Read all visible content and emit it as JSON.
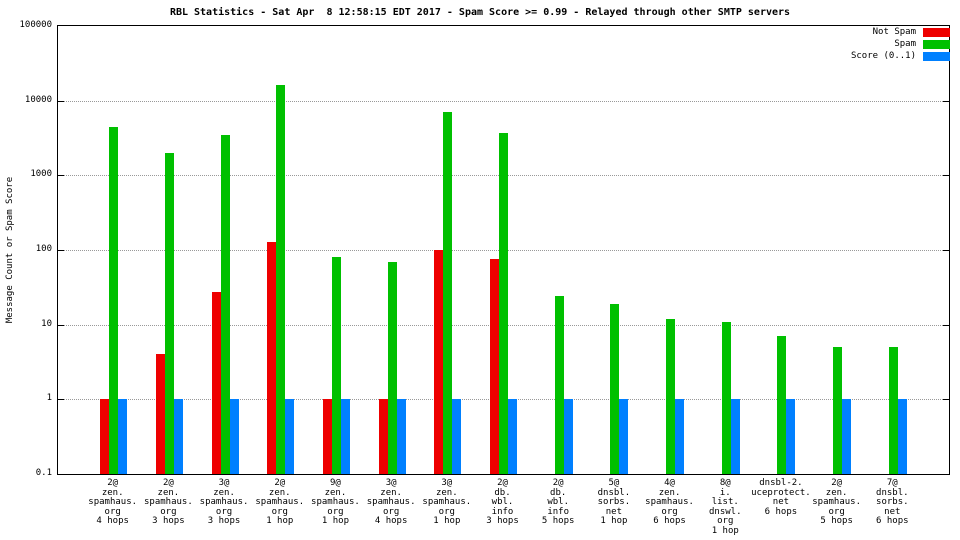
{
  "title": "RBL Statistics - Sat Apr  8 12:58:15 EDT 2017 - Spam Score >= 0.99 - Relayed through other SMTP servers",
  "ylabel": "Message Count or Spam Score",
  "legend": [
    {
      "label": "Not Spam",
      "color": "#ee0000"
    },
    {
      "label": "Spam",
      "color": "#00c000"
    },
    {
      "label": "Score (0..1)",
      "color": "#0080ff"
    }
  ],
  "chart_data": {
    "type": "bar",
    "y_scale": "log",
    "ylim": [
      0.1,
      100000
    ],
    "yticks": [
      100000,
      10000,
      1000,
      100,
      10,
      1,
      0.1
    ],
    "grid": "horizontal-dotted",
    "legend_position": "top-right",
    "categories": [
      [
        "2@",
        "zen.",
        "spamhaus.",
        "org",
        "4 hops"
      ],
      [
        "2@",
        "zen.",
        "spamhaus.",
        "org",
        "3 hops"
      ],
      [
        "3@",
        "zen.",
        "spamhaus.",
        "org",
        "3 hops"
      ],
      [
        "2@",
        "zen.",
        "spamhaus.",
        "org",
        "1 hop"
      ],
      [
        "9@",
        "zen.",
        "spamhaus.",
        "org",
        "1 hop"
      ],
      [
        "3@",
        "zen.",
        "spamhaus.",
        "org",
        "4 hops"
      ],
      [
        "3@",
        "zen.",
        "spamhaus.",
        "org",
        "1 hop"
      ],
      [
        "2@",
        "db.",
        "wbl.",
        "info",
        "3 hops"
      ],
      [
        "2@",
        "db.",
        "wbl.",
        "info",
        "5 hops"
      ],
      [
        "5@",
        "dnsbl.",
        "sorbs.",
        "net",
        "1 hop"
      ],
      [
        "4@",
        "zen.",
        "spamhaus.",
        "org",
        "6 hops"
      ],
      [
        "8@",
        "i.",
        "list.",
        "dnswl.",
        "org",
        "1 hop"
      ],
      [
        "dnsbl-2.",
        "uceprotect.",
        "net",
        "6 hops"
      ],
      [
        "2@",
        "zen.",
        "spamhaus.",
        "org",
        "5 hops"
      ],
      [
        "7@",
        "dnsbl.",
        "sorbs.",
        "net",
        "6 hops"
      ]
    ],
    "series": [
      {
        "name": "Not Spam",
        "color": "#ee0000",
        "values": [
          1,
          4,
          27,
          130,
          1,
          1,
          100,
          75,
          0,
          0,
          0,
          0,
          0,
          0,
          0
        ]
      },
      {
        "name": "Spam",
        "color": "#00c000",
        "values": [
          4500,
          2000,
          3500,
          16000,
          80,
          70,
          7000,
          3700,
          24,
          19,
          12,
          11,
          7,
          5,
          5
        ]
      },
      {
        "name": "Score (0..1)",
        "color": "#0080ff",
        "values": [
          1,
          1,
          1,
          1,
          1,
          1,
          1,
          1,
          1,
          1,
          1,
          1,
          1,
          1,
          1
        ]
      }
    ]
  }
}
